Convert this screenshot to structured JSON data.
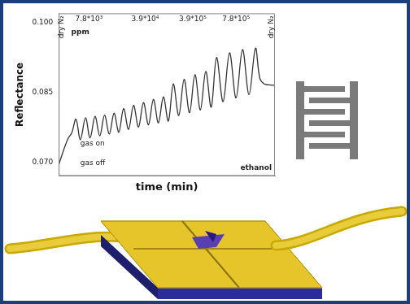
{
  "chart_data": {
    "type": "line",
    "x_label": "time (min)",
    "y_label": "Reflectance",
    "x": [
      0,
      1.5,
      3,
      4.5,
      6,
      8,
      10,
      12.4,
      14.5,
      16.8,
      19,
      21.2,
      23.4,
      25.6,
      27.8,
      30,
      32.3,
      34.6,
      36.9,
      39.2,
      41.5,
      43.8,
      46.1,
      48.4,
      50.7,
      53,
      55.5,
      58,
      60.5,
      63,
      65.5,
      68,
      70.5,
      73,
      76,
      79,
      82,
      85,
      88,
      91,
      93,
      95,
      97,
      100
    ],
    "values": [
      0.0694,
      0.0715,
      0.0735,
      0.0752,
      0.0762,
      0.0792,
      0.0748,
      0.0795,
      0.0752,
      0.0798,
      0.0756,
      0.0801,
      0.076,
      0.0805,
      0.0764,
      0.0815,
      0.077,
      0.0822,
      0.0775,
      0.0828,
      0.078,
      0.0835,
      0.0784,
      0.084,
      0.0788,
      0.0868,
      0.08,
      0.0878,
      0.0806,
      0.0888,
      0.0812,
      0.0895,
      0.0818,
      0.0925,
      0.083,
      0.0935,
      0.0838,
      0.0942,
      0.0845,
      0.0945,
      0.088,
      0.0868,
      0.0866,
      0.0865
    ],
    "color": "#333333",
    "xlim": [
      0,
      100
    ],
    "ylim": [
      0.067,
      0.102
    ],
    "yticks": [
      {
        "value": 0.07,
        "label": "0.070"
      },
      {
        "value": 0.085,
        "label": "0.085"
      },
      {
        "value": 0.1,
        "label": "0.100"
      }
    ],
    "tick_labels": "y",
    "grid": false,
    "annotations": [
      "dry N₂",
      "7.8*10³",
      "ppm",
      "3.9*10⁴",
      "3.9*10⁵",
      "7.8*10⁵",
      "dry N₂",
      "gas on",
      "gas off",
      "ethanol"
    ]
  }
}
